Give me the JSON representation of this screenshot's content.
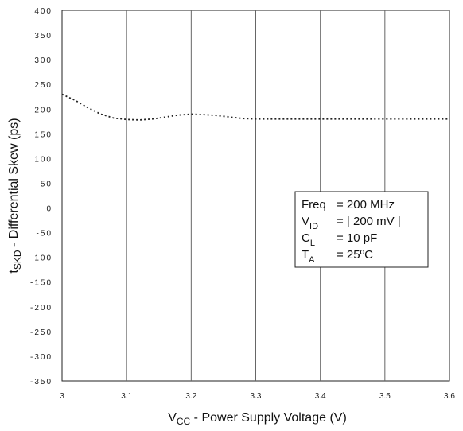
{
  "chart_data": {
    "type": "line",
    "title": "",
    "xlabel": {
      "main": "V",
      "sub": "CC",
      "rest": " - Power Supply Voltage (V)"
    },
    "ylabel": {
      "main": "t",
      "sub": "SKD",
      "rest": " - Differential Skew (ps)"
    },
    "xlim": [
      3,
      3.6
    ],
    "ylim": [
      -350,
      400
    ],
    "x_ticks": [
      "3",
      "3.1",
      "3.2",
      "3.3",
      "3.4",
      "3.5",
      "3.6"
    ],
    "y_ticks": [
      "400",
      "350",
      "300",
      "250",
      "200",
      "150",
      "100",
      "50",
      "0",
      "-50",
      "-100",
      "-150",
      "-200",
      "-250",
      "-300",
      "-350"
    ],
    "grid": "vertical",
    "series": [
      {
        "style": "dotted",
        "x": [
          3.0,
          3.02,
          3.04,
          3.06,
          3.08,
          3.1,
          3.12,
          3.14,
          3.16,
          3.18,
          3.2,
          3.22,
          3.24,
          3.26,
          3.28,
          3.3,
          3.35,
          3.4,
          3.45,
          3.5,
          3.55,
          3.6
        ],
        "y": [
          230,
          218,
          203,
          190,
          182,
          179,
          178,
          180,
          184,
          188,
          190,
          189,
          187,
          184,
          181,
          180,
          180,
          180,
          180,
          180,
          180,
          180
        ]
      }
    ],
    "legend_box": {
      "position": "right-middle",
      "lines": [
        {
          "main": "Freq",
          "sub": "",
          "value": "= 200 MHz"
        },
        {
          "main": "V",
          "sub": "ID",
          "value": "= | 200 mV |"
        },
        {
          "main": "C",
          "sub": "L",
          "value": "= 10 pF"
        },
        {
          "main": "T",
          "sub": "A",
          "value": "= 25ºC"
        }
      ]
    }
  }
}
